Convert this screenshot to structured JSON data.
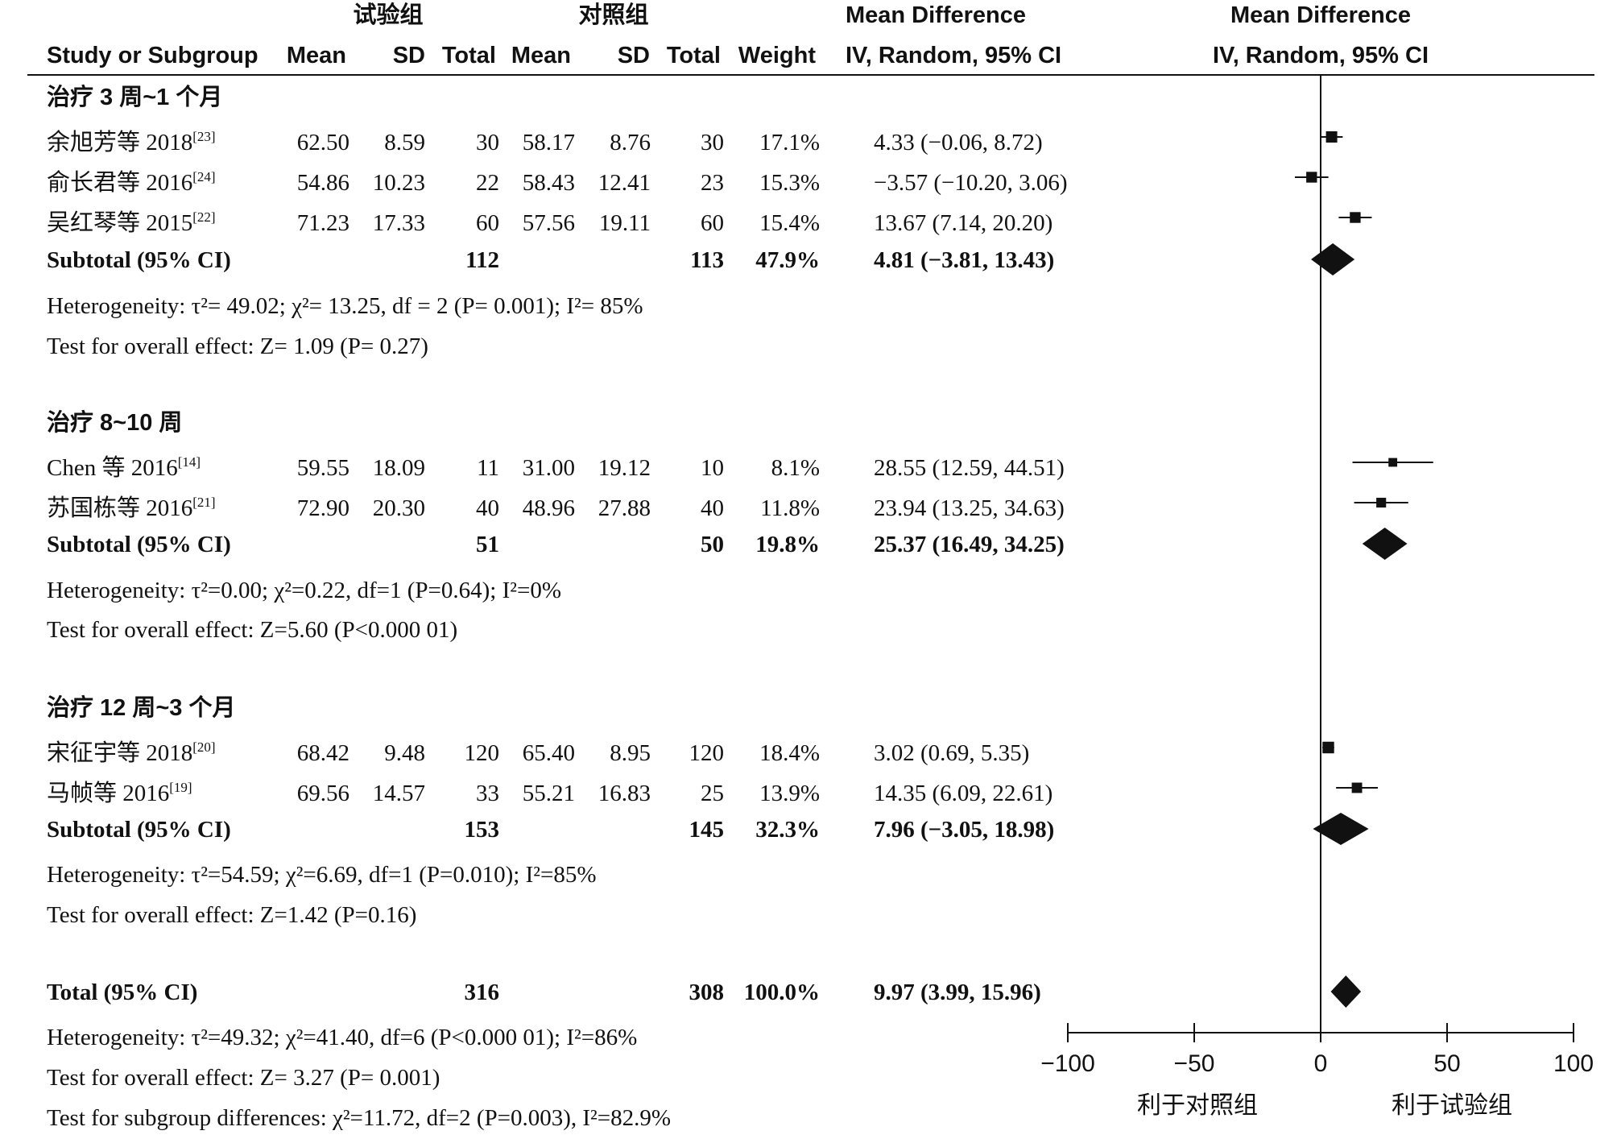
{
  "header": {
    "group1": "试验组",
    "group2": "对照组",
    "md_title": "Mean Difference",
    "plot_title": "Mean Difference",
    "study_col": "Study or Subgroup",
    "mean1": "Mean",
    "sd1": "SD",
    "total1": "Total",
    "mean2": "Mean",
    "sd2": "SD",
    "total2": "Total",
    "weight": "Weight",
    "md_method": "IV, Random, 95% CI",
    "plot_method": "IV, Random, 95% CI"
  },
  "subgroups": [
    {
      "title": "治疗 3 周~1 个月",
      "studies": [
        {
          "name": "余旭芳等 2018",
          "ref": "[23]",
          "mean1": "62.50",
          "sd1": "8.59",
          "n1": "30",
          "mean2": "58.17",
          "sd2": "8.76",
          "n2": "30",
          "weight": "17.1%",
          "ci_text": "4.33 (−0.06, 8.72)"
        },
        {
          "name": "俞长君等 2016",
          "ref": "[24]",
          "mean1": "54.86",
          "sd1": "10.23",
          "n1": "22",
          "mean2": "58.43",
          "sd2": "12.41",
          "n2": "23",
          "weight": "15.3%",
          "ci_text": "−3.57 (−10.20, 3.06)"
        },
        {
          "name": "吴红琴等 2015",
          "ref": "[22]",
          "mean1": "71.23",
          "sd1": "17.33",
          "n1": "60",
          "mean2": "57.56",
          "sd2": "19.11",
          "n2": "60",
          "weight": "15.4%",
          "ci_text": "13.67 (7.14, 20.20)"
        }
      ],
      "subtotal": {
        "label": "Subtotal (95% CI)",
        "n1": "112",
        "n2": "113",
        "weight": "47.9%",
        "ci_text": "4.81 (−3.81, 13.43)"
      },
      "heterogeneity": "Heterogeneity: τ²= 49.02; χ²= 13.25, df = 2 (P= 0.001); I²= 85%",
      "overall": "Test for overall effect: Z= 1.09 (P= 0.27)"
    },
    {
      "title": "治疗 8~10 周",
      "studies": [
        {
          "name": "Chen 等 2016",
          "ref": "[14]",
          "mean1": "59.55",
          "sd1": "18.09",
          "n1": "11",
          "mean2": "31.00",
          "sd2": "19.12",
          "n2": "10",
          "weight": "8.1%",
          "ci_text": "28.55 (12.59, 44.51)"
        },
        {
          "name": "苏国栋等 2016",
          "ref": "[21]",
          "mean1": "72.90",
          "sd1": "20.30",
          "n1": "40",
          "mean2": "48.96",
          "sd2": "27.88",
          "n2": "40",
          "weight": "11.8%",
          "ci_text": "23.94 (13.25, 34.63)"
        }
      ],
      "subtotal": {
        "label": "Subtotal (95% CI)",
        "n1": "51",
        "n2": "50",
        "weight": "19.8%",
        "ci_text": "25.37 (16.49, 34.25)"
      },
      "heterogeneity": "Heterogeneity: τ²=0.00; χ²=0.22, df=1 (P=0.64); I²=0%",
      "overall": "Test for overall effect: Z=5.60 (P<0.000 01)"
    },
    {
      "title": "治疗 12 周~3 个月",
      "studies": [
        {
          "name": "宋征宇等 2018",
          "ref": "[20]",
          "mean1": "68.42",
          "sd1": "9.48",
          "n1": "120",
          "mean2": "65.40",
          "sd2": "8.95",
          "n2": "120",
          "weight": "18.4%",
          "ci_text": "3.02 (0.69, 5.35)"
        },
        {
          "name": "马帧等 2016",
          "ref": "[19]",
          "mean1": "69.56",
          "sd1": "14.57",
          "n1": "33",
          "mean2": "55.21",
          "sd2": "16.83",
          "n2": "25",
          "weight": "13.9%",
          "ci_text": "14.35 (6.09, 22.61)"
        }
      ],
      "subtotal": {
        "label": "Subtotal (95% CI)",
        "n1": "153",
        "n2": "145",
        "weight": "32.3%",
        "ci_text": "7.96 (−3.05, 18.98)"
      },
      "heterogeneity": "Heterogeneity: τ²=54.59; χ²=6.69, df=1 (P=0.010); I²=85%",
      "overall": "Test for overall effect: Z=1.42 (P=0.16)"
    }
  ],
  "total": {
    "label": "Total (95% CI)",
    "n1": "316",
    "n2": "308",
    "weight": "100.0%",
    "ci_text": "9.97 (3.99, 15.96)",
    "heterogeneity": "Heterogeneity: τ²=49.32; χ²=41.40, df=6 (P<0.000 01); I²=86%",
    "overall": "Test for overall effect: Z= 3.27 (P= 0.001)",
    "subgroup_diff": "Test for subgroup differences: χ²=11.72, df=2 (P=0.003), I²=82.9%"
  },
  "axis": {
    "ticks": [
      "−100",
      "−50",
      "0",
      "50",
      "100"
    ],
    "left_label": "利于对照组",
    "right_label": "利于试验组"
  },
  "chart_data": {
    "type": "forest",
    "xlim": [
      -100,
      100
    ],
    "tick_values": [
      -100,
      -50,
      0,
      50,
      100
    ],
    "studies": [
      {
        "md": 4.33,
        "lo": -0.06,
        "hi": 8.72,
        "weight": 17.1
      },
      {
        "md": -3.57,
        "lo": -10.2,
        "hi": 3.06,
        "weight": 15.3
      },
      {
        "md": 13.67,
        "lo": 7.14,
        "hi": 20.2,
        "weight": 15.4
      },
      {
        "md": 28.55,
        "lo": 12.59,
        "hi": 44.51,
        "weight": 8.1
      },
      {
        "md": 23.94,
        "lo": 13.25,
        "hi": 34.63,
        "weight": 11.8
      },
      {
        "md": 3.02,
        "lo": 0.69,
        "hi": 5.35,
        "weight": 18.4
      },
      {
        "md": 14.35,
        "lo": 6.09,
        "hi": 22.61,
        "weight": 13.9
      }
    ],
    "subtotals": [
      {
        "md": 4.81,
        "lo": -3.81,
        "hi": 13.43
      },
      {
        "md": 25.37,
        "lo": 16.49,
        "hi": 34.25
      },
      {
        "md": 7.96,
        "lo": -3.05,
        "hi": 18.98
      }
    ],
    "total": {
      "md": 9.97,
      "lo": 3.99,
      "hi": 15.96
    }
  }
}
